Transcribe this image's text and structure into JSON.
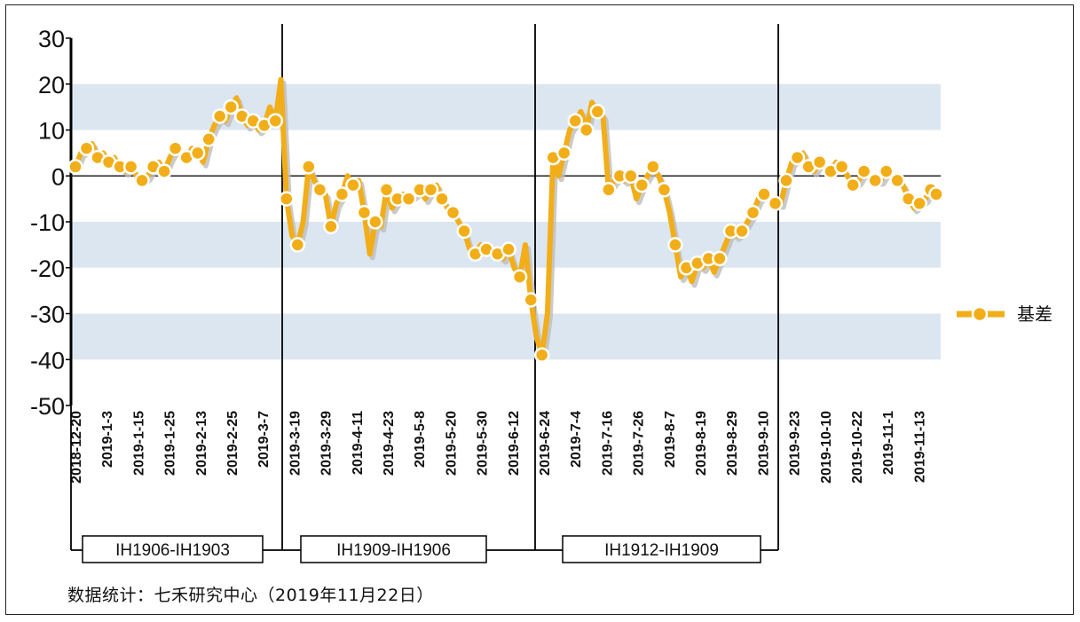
{
  "chart_data": {
    "type": "line",
    "ylim": [
      -50,
      30
    ],
    "yticks": [
      30,
      20,
      10,
      0,
      -10,
      -20,
      -30,
      -40,
      -50
    ],
    "grid_bands": [
      [
        10,
        20
      ],
      [
        -20,
        -10
      ],
      [
        -40,
        -30
      ]
    ],
    "series": [
      {
        "name": "基差",
        "color": "#F2AE19",
        "values": [
          2,
          5,
          6,
          7,
          4,
          5,
          3,
          4,
          2,
          1,
          2,
          0,
          -1,
          0,
          2,
          3,
          1,
          4,
          6,
          5,
          4,
          6,
          5,
          3,
          8,
          11,
          13,
          12,
          15,
          17,
          13,
          11,
          12,
          10,
          11,
          15,
          12,
          21,
          -5,
          -13,
          -15,
          -10,
          2,
          -1,
          -3,
          -4,
          -11,
          -6,
          -4,
          0,
          -2,
          -1,
          -8,
          -17,
          -10,
          -11,
          -3,
          -7,
          -5,
          -4,
          -5,
          -4,
          -3,
          -5,
          -3,
          -2,
          -5,
          -7,
          -8,
          -10,
          -12,
          -16,
          -17,
          -15,
          -16,
          -17,
          -17,
          -18,
          -16,
          -20,
          -22,
          -15,
          -27,
          -35,
          -39,
          -30,
          4,
          0,
          5,
          10,
          12,
          14,
          10,
          16,
          14,
          13,
          -3,
          -1,
          0,
          -1,
          0,
          -5,
          -2,
          0,
          2,
          0,
          -3,
          -8,
          -15,
          -22,
          -20,
          -23,
          -19,
          -20,
          -18,
          -21,
          -18,
          -15,
          -12,
          -13,
          -12,
          -10,
          -8,
          -5,
          -4,
          -5,
          -6,
          -6,
          -1,
          3,
          4,
          5,
          2,
          1,
          3,
          2,
          1,
          3,
          2,
          0,
          -2,
          -1,
          1,
          0,
          -1,
          -1,
          1,
          0,
          -1,
          -2,
          -5,
          -7,
          -6,
          -5,
          -3,
          -4
        ]
      }
    ],
    "x_labels": [
      "2018-12-20",
      "2019-1-3",
      "2019-1-15",
      "2019-1-25",
      "2019-2-13",
      "2019-2-25",
      "2019-3-7",
      "2019-3-19",
      "2019-3-29",
      "2019-4-11",
      "2019-4-23",
      "2019-5-8",
      "2019-5-20",
      "2019-5-30",
      "2019-6-12",
      "2019-6-24",
      "2019-7-4",
      "2019-7-16",
      "2019-7-26",
      "2019-8-7",
      "2019-8-19",
      "2019-8-29",
      "2019-9-10",
      "2019-9-23",
      "2019-10-10",
      "2019-10-22",
      "2019-11-1",
      "2019-11-13"
    ],
    "contracts": [
      "IH1906-IH1903",
      "IH1909-IH1906",
      "IH1912-IH1909"
    ],
    "legend": {
      "label": "基差",
      "position": "right"
    }
  },
  "footer": "数据统计：七禾研究中心（2019年11月22日）"
}
